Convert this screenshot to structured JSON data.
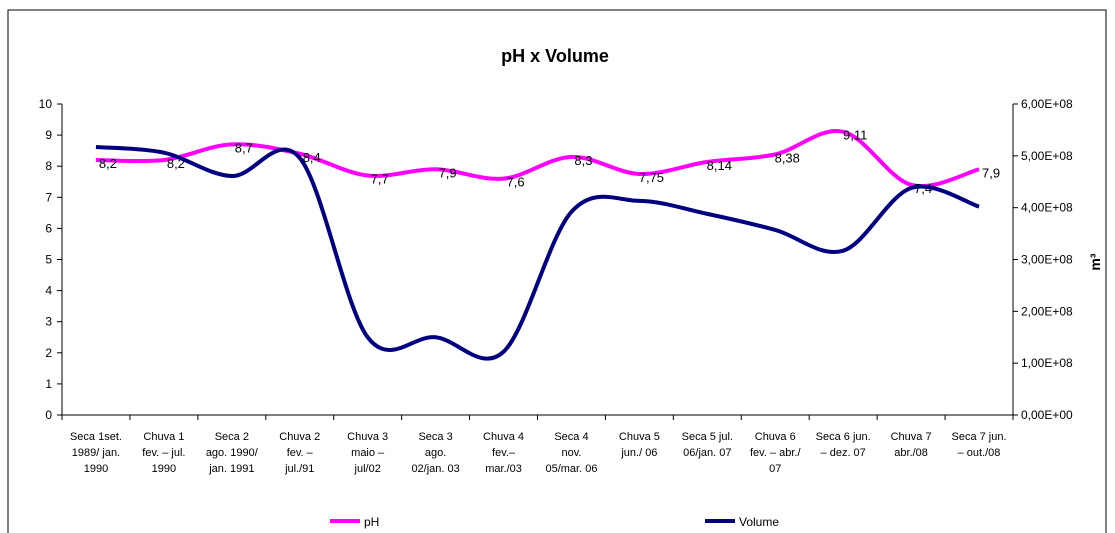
{
  "chart_data": {
    "type": "line",
    "title": "pH x Volume",
    "categories": [
      "Seca 1set.\n1989/ jan.\n1990",
      "Chuva 1\nfev. – jul.\n1990",
      "Seca 2\nago. 1990/\njan. 1991",
      "Chuva 2\nfev. –\njul./91",
      "Chuva 3\nmaio –\njul/02",
      "Seca 3\nago.\n02/jan. 03",
      "Chuva 4\nfev.–\nmar./03",
      "Seca 4\nnov.\n05/mar. 06",
      "Chuva 5\njun./ 06",
      "Seca 5 jul.\n06/jan. 07",
      "Chuva 6\nfev. – abr./\n07",
      "Seca 6 jun.\n– dez. 07",
      "Chuva 7\nabr./08",
      "Seca 7 jun.\n– out./08"
    ],
    "series": [
      {
        "name": "pH",
        "color": "#ff00ff",
        "values": [
          8.2,
          8.2,
          8.7,
          8.4,
          7.7,
          7.9,
          7.6,
          8.3,
          7.75,
          8.14,
          8.38,
          9.11,
          7.4,
          7.9
        ],
        "value_labels": [
          "8,2",
          "8,2",
          "8,7",
          "8,4",
          "7,7",
          "7,9",
          "7,6",
          "8,3",
          "7,75",
          "8,14",
          "8,38",
          "9,11",
          "7,4",
          "7,9"
        ]
      },
      {
        "name": "Volume",
        "color": "#000080",
        "axis": "y2",
        "values": [
          517000000,
          506000000,
          461000000,
          496000000,
          150000000,
          150000000,
          122000000,
          392000000,
          413000000,
          388000000,
          357000000,
          317000000,
          438000000,
          402000000
        ]
      }
    ],
    "ylim": [
      0,
      10
    ],
    "yticks": [
      0,
      1,
      2,
      3,
      4,
      5,
      6,
      7,
      8,
      9,
      10
    ],
    "y2lim": [
      0,
      600000000
    ],
    "y2ticks": [
      {
        "value": 0,
        "label": "0,00E+00"
      },
      {
        "value": 100000000,
        "label": "1,00E+08"
      },
      {
        "value": 200000000,
        "label": "2,00E+08"
      },
      {
        "value": 300000000,
        "label": "3,00E+08"
      },
      {
        "value": 400000000,
        "label": "4,00E+08"
      },
      {
        "value": 500000000,
        "label": "5,00E+08"
      },
      {
        "value": 600000000,
        "label": "6,00E+08"
      }
    ],
    "y2_label": "m³",
    "legend": "bottom"
  }
}
